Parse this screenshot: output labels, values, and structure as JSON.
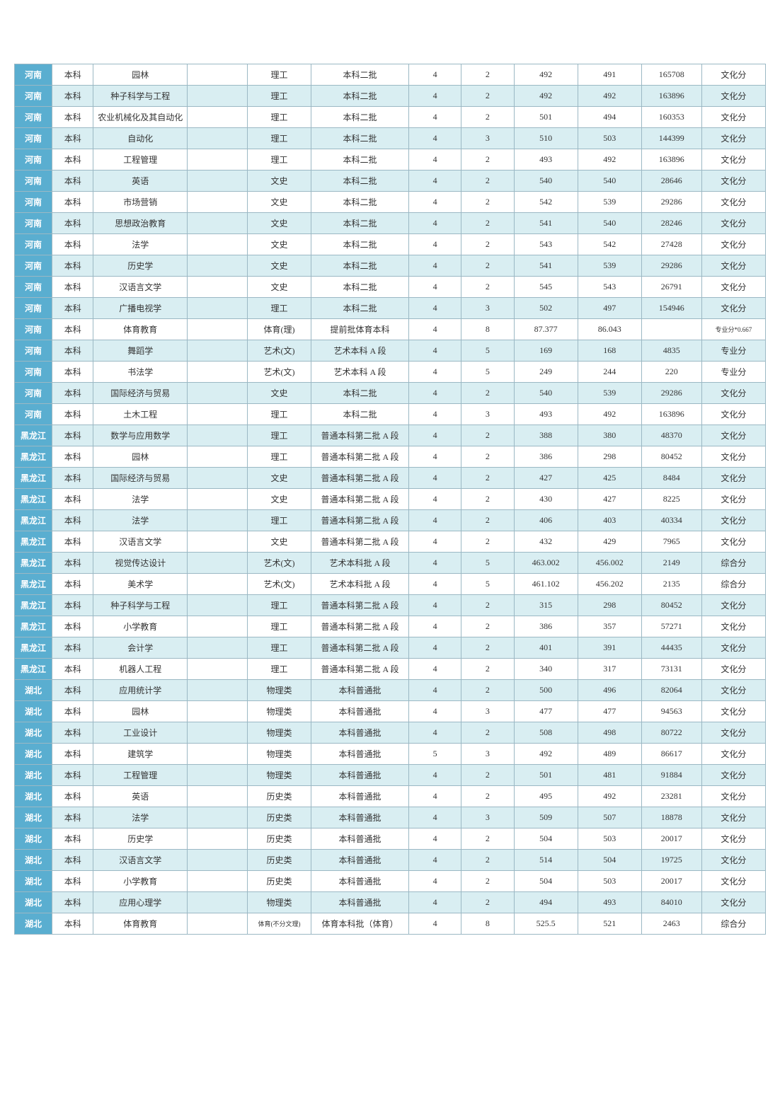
{
  "table": {
    "column_widths_pct": [
      5.0,
      5.5,
      12.5,
      8.0,
      8.5,
      13.0,
      7.0,
      7.0,
      8.5,
      8.5,
      8.0,
      8.5
    ],
    "border_color": "#9bb8c4",
    "province_bg": "#5aaed0",
    "province_fg": "#ffffff",
    "even_row_bg": "#d9eef2",
    "odd_row_bg": "#ffffff",
    "font_size": 12,
    "rows": [
      {
        "province": "河南",
        "level": "本科",
        "major": "园林",
        "col4": "",
        "category": "理工",
        "batch": "本科二批",
        "plan": "4",
        "admit": "2",
        "max": "492",
        "min": "491",
        "rank": "165708",
        "type": "文化分"
      },
      {
        "province": "河南",
        "level": "本科",
        "major": "种子科学与工程",
        "col4": "",
        "category": "理工",
        "batch": "本科二批",
        "plan": "4",
        "admit": "2",
        "max": "492",
        "min": "492",
        "rank": "163896",
        "type": "文化分"
      },
      {
        "province": "河南",
        "level": "本科",
        "major": "农业机械化及其自动化",
        "col4": "",
        "category": "理工",
        "batch": "本科二批",
        "plan": "4",
        "admit": "2",
        "max": "501",
        "min": "494",
        "rank": "160353",
        "type": "文化分"
      },
      {
        "province": "河南",
        "level": "本科",
        "major": "自动化",
        "col4": "",
        "category": "理工",
        "batch": "本科二批",
        "plan": "4",
        "admit": "3",
        "max": "510",
        "min": "503",
        "rank": "144399",
        "type": "文化分"
      },
      {
        "province": "河南",
        "level": "本科",
        "major": "工程管理",
        "col4": "",
        "category": "理工",
        "batch": "本科二批",
        "plan": "4",
        "admit": "2",
        "max": "493",
        "min": "492",
        "rank": "163896",
        "type": "文化分"
      },
      {
        "province": "河南",
        "level": "本科",
        "major": "英语",
        "col4": "",
        "category": "文史",
        "batch": "本科二批",
        "plan": "4",
        "admit": "2",
        "max": "540",
        "min": "540",
        "rank": "28646",
        "type": "文化分"
      },
      {
        "province": "河南",
        "level": "本科",
        "major": "市场营销",
        "col4": "",
        "category": "文史",
        "batch": "本科二批",
        "plan": "4",
        "admit": "2",
        "max": "542",
        "min": "539",
        "rank": "29286",
        "type": "文化分"
      },
      {
        "province": "河南",
        "level": "本科",
        "major": "思想政治教育",
        "col4": "",
        "category": "文史",
        "batch": "本科二批",
        "plan": "4",
        "admit": "2",
        "max": "541",
        "min": "540",
        "rank": "28246",
        "type": "文化分"
      },
      {
        "province": "河南",
        "level": "本科",
        "major": "法学",
        "col4": "",
        "category": "文史",
        "batch": "本科二批",
        "plan": "4",
        "admit": "2",
        "max": "543",
        "min": "542",
        "rank": "27428",
        "type": "文化分"
      },
      {
        "province": "河南",
        "level": "本科",
        "major": "历史学",
        "col4": "",
        "category": "文史",
        "batch": "本科二批",
        "plan": "4",
        "admit": "2",
        "max": "541",
        "min": "539",
        "rank": "29286",
        "type": "文化分"
      },
      {
        "province": "河南",
        "level": "本科",
        "major": "汉语言文学",
        "col4": "",
        "category": "文史",
        "batch": "本科二批",
        "plan": "4",
        "admit": "2",
        "max": "545",
        "min": "543",
        "rank": "26791",
        "type": "文化分"
      },
      {
        "province": "河南",
        "level": "本科",
        "major": "广播电视学",
        "col4": "",
        "category": "理工",
        "batch": "本科二批",
        "plan": "4",
        "admit": "3",
        "max": "502",
        "min": "497",
        "rank": "154946",
        "type": "文化分"
      },
      {
        "province": "河南",
        "level": "本科",
        "major": "体育教育",
        "col4": "",
        "category": "体育(理)",
        "batch": "提前批体育本科",
        "plan": "4",
        "admit": "8",
        "max": "87.377",
        "min": "86.043",
        "rank": "",
        "type": "专业分*0.667",
        "type_small": true
      },
      {
        "province": "河南",
        "level": "本科",
        "major": "舞蹈学",
        "col4": "",
        "category": "艺术(文)",
        "batch": "艺术本科 A 段",
        "plan": "4",
        "admit": "5",
        "max": "169",
        "min": "168",
        "rank": "4835",
        "type": "专业分"
      },
      {
        "province": "河南",
        "level": "本科",
        "major": "书法学",
        "col4": "",
        "category": "艺术(文)",
        "batch": "艺术本科 A 段",
        "plan": "4",
        "admit": "5",
        "max": "249",
        "min": "244",
        "rank": "220",
        "type": "专业分"
      },
      {
        "province": "河南",
        "level": "本科",
        "major": "国际经济与贸易",
        "col4": "",
        "category": "文史",
        "batch": "本科二批",
        "plan": "4",
        "admit": "2",
        "max": "540",
        "min": "539",
        "rank": "29286",
        "type": "文化分"
      },
      {
        "province": "河南",
        "level": "本科",
        "major": "土木工程",
        "col4": "",
        "category": "理工",
        "batch": "本科二批",
        "plan": "4",
        "admit": "3",
        "max": "493",
        "min": "492",
        "rank": "163896",
        "type": "文化分"
      },
      {
        "province": "黑龙江",
        "level": "本科",
        "major": "数学与应用数学",
        "col4": "",
        "category": "理工",
        "batch": "普通本科第二批 A 段",
        "plan": "4",
        "admit": "2",
        "max": "388",
        "min": "380",
        "rank": "48370",
        "type": "文化分"
      },
      {
        "province": "黑龙江",
        "level": "本科",
        "major": "园林",
        "col4": "",
        "category": "理工",
        "batch": "普通本科第二批 A 段",
        "plan": "4",
        "admit": "2",
        "max": "386",
        "min": "298",
        "rank": "80452",
        "type": "文化分"
      },
      {
        "province": "黑龙江",
        "level": "本科",
        "major": "国际经济与贸易",
        "col4": "",
        "category": "文史",
        "batch": "普通本科第二批 A 段",
        "plan": "4",
        "admit": "2",
        "max": "427",
        "min": "425",
        "rank": "8484",
        "type": "文化分"
      },
      {
        "province": "黑龙江",
        "level": "本科",
        "major": "法学",
        "col4": "",
        "category": "文史",
        "batch": "普通本科第二批 A 段",
        "plan": "4",
        "admit": "2",
        "max": "430",
        "min": "427",
        "rank": "8225",
        "type": "文化分"
      },
      {
        "province": "黑龙江",
        "level": "本科",
        "major": "法学",
        "col4": "",
        "category": "理工",
        "batch": "普通本科第二批 A 段",
        "plan": "4",
        "admit": "2",
        "max": "406",
        "min": "403",
        "rank": "40334",
        "type": "文化分"
      },
      {
        "province": "黑龙江",
        "level": "本科",
        "major": "汉语言文学",
        "col4": "",
        "category": "文史",
        "batch": "普通本科第二批 A 段",
        "plan": "4",
        "admit": "2",
        "max": "432",
        "min": "429",
        "rank": "7965",
        "type": "文化分"
      },
      {
        "province": "黑龙江",
        "level": "本科",
        "major": "视觉传达设计",
        "col4": "",
        "category": "艺术(文)",
        "batch": "艺术本科批 A 段",
        "plan": "4",
        "admit": "5",
        "max": "463.002",
        "min": "456.002",
        "rank": "2149",
        "type": "综合分"
      },
      {
        "province": "黑龙江",
        "level": "本科",
        "major": "美术学",
        "col4": "",
        "category": "艺术(文)",
        "batch": "艺术本科批 A 段",
        "plan": "4",
        "admit": "5",
        "max": "461.102",
        "min": "456.202",
        "rank": "2135",
        "type": "综合分"
      },
      {
        "province": "黑龙江",
        "level": "本科",
        "major": "种子科学与工程",
        "col4": "",
        "category": "理工",
        "batch": "普通本科第二批 A 段",
        "plan": "4",
        "admit": "2",
        "max": "315",
        "min": "298",
        "rank": "80452",
        "type": "文化分"
      },
      {
        "province": "黑龙江",
        "level": "本科",
        "major": "小学教育",
        "col4": "",
        "category": "理工",
        "batch": "普通本科第二批 A 段",
        "plan": "4",
        "admit": "2",
        "max": "386",
        "min": "357",
        "rank": "57271",
        "type": "文化分"
      },
      {
        "province": "黑龙江",
        "level": "本科",
        "major": "会计学",
        "col4": "",
        "category": "理工",
        "batch": "普通本科第二批 A 段",
        "plan": "4",
        "admit": "2",
        "max": "401",
        "min": "391",
        "rank": "44435",
        "type": "文化分"
      },
      {
        "province": "黑龙江",
        "level": "本科",
        "major": "机器人工程",
        "col4": "",
        "category": "理工",
        "batch": "普通本科第二批 A 段",
        "plan": "4",
        "admit": "2",
        "max": "340",
        "min": "317",
        "rank": "73131",
        "type": "文化分"
      },
      {
        "province": "湖北",
        "level": "本科",
        "major": "应用统计学",
        "col4": "",
        "category": "物理类",
        "batch": "本科普通批",
        "plan": "4",
        "admit": "2",
        "max": "500",
        "min": "496",
        "rank": "82064",
        "type": "文化分"
      },
      {
        "province": "湖北",
        "level": "本科",
        "major": "园林",
        "col4": "",
        "category": "物理类",
        "batch": "本科普通批",
        "plan": "4",
        "admit": "3",
        "max": "477",
        "min": "477",
        "rank": "94563",
        "type": "文化分"
      },
      {
        "province": "湖北",
        "level": "本科",
        "major": "工业设计",
        "col4": "",
        "category": "物理类",
        "batch": "本科普通批",
        "plan": "4",
        "admit": "2",
        "max": "508",
        "min": "498",
        "rank": "80722",
        "type": "文化分"
      },
      {
        "province": "湖北",
        "level": "本科",
        "major": "建筑学",
        "col4": "",
        "category": "物理类",
        "batch": "本科普通批",
        "plan": "5",
        "admit": "3",
        "max": "492",
        "min": "489",
        "rank": "86617",
        "type": "文化分"
      },
      {
        "province": "湖北",
        "level": "本科",
        "major": "工程管理",
        "col4": "",
        "category": "物理类",
        "batch": "本科普通批",
        "plan": "4",
        "admit": "2",
        "max": "501",
        "min": "481",
        "rank": "91884",
        "type": "文化分"
      },
      {
        "province": "湖北",
        "level": "本科",
        "major": "英语",
        "col4": "",
        "category": "历史类",
        "batch": "本科普通批",
        "plan": "4",
        "admit": "2",
        "max": "495",
        "min": "492",
        "rank": "23281",
        "type": "文化分"
      },
      {
        "province": "湖北",
        "level": "本科",
        "major": "法学",
        "col4": "",
        "category": "历史类",
        "batch": "本科普通批",
        "plan": "4",
        "admit": "3",
        "max": "509",
        "min": "507",
        "rank": "18878",
        "type": "文化分"
      },
      {
        "province": "湖北",
        "level": "本科",
        "major": "历史学",
        "col4": "",
        "category": "历史类",
        "batch": "本科普通批",
        "plan": "4",
        "admit": "2",
        "max": "504",
        "min": "503",
        "rank": "20017",
        "type": "文化分"
      },
      {
        "province": "湖北",
        "level": "本科",
        "major": "汉语言文学",
        "col4": "",
        "category": "历史类",
        "batch": "本科普通批",
        "plan": "4",
        "admit": "2",
        "max": "514",
        "min": "504",
        "rank": "19725",
        "type": "文化分"
      },
      {
        "province": "湖北",
        "level": "本科",
        "major": "小学教育",
        "col4": "",
        "category": "历史类",
        "batch": "本科普通批",
        "plan": "4",
        "admit": "2",
        "max": "504",
        "min": "503",
        "rank": "20017",
        "type": "文化分"
      },
      {
        "province": "湖北",
        "level": "本科",
        "major": "应用心理学",
        "col4": "",
        "category": "物理类",
        "batch": "本科普通批",
        "plan": "4",
        "admit": "2",
        "max": "494",
        "min": "493",
        "rank": "84010",
        "type": "文化分"
      },
      {
        "province": "湖北",
        "level": "本科",
        "major": "体育教育",
        "col4": "",
        "category": "体育(不分文理)",
        "category_small": true,
        "batch": "体育本科批（体育）",
        "plan": "4",
        "admit": "8",
        "max": "525.5",
        "min": "521",
        "rank": "2463",
        "type": "综合分"
      }
    ]
  }
}
